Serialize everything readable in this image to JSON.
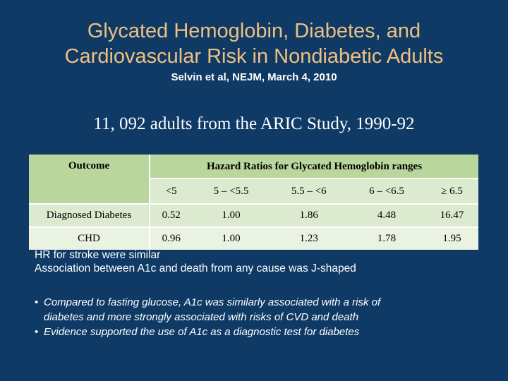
{
  "title": {
    "line1": "Glycated Hemoglobin, Diabetes, and",
    "line2": "Cardiovascular Risk in Nondiabetic Adults"
  },
  "citation": "Selvin et al, NEJM, March 4, 2010",
  "study": "11, 092 adults from the ARIC Study, 1990-92",
  "table": {
    "outcome_header": "Outcome",
    "group_header": "Hazard Ratios for Glycated Hemoglobin ranges",
    "ranges": [
      "<5",
      "5 – <5.5",
      "5.5 – <6",
      "6 – <6.5",
      "≥ 6.5"
    ],
    "rows": [
      {
        "outcome": "Diagnosed Diabetes",
        "values": [
          "0.52",
          "1.00",
          "1.86",
          "4.48",
          "16.47"
        ]
      },
      {
        "outcome": "CHD",
        "values": [
          "0.96",
          "1.00",
          "1.23",
          "1.78",
          "1.95"
        ]
      }
    ]
  },
  "notes": [
    "HR for stroke were similar",
    "Association between A1c and death from any cause was J-shaped"
  ],
  "bullets": [
    {
      "marker": "•",
      "line1": "Compared to fasting glucose, A1c was similarly associated with a risk of",
      "line2": "diabetes and more strongly associated with risks of CVD and death"
    },
    {
      "marker": "•",
      "line1": "Evidence supported the use of A1c as a diagnostic test for diabetes",
      "line2": ""
    }
  ],
  "colors": {
    "background": "#0f3a66",
    "title": "#f0c080",
    "table_header": "#b9d79c",
    "table_band": "#dcebcf",
    "table_light": "#eaf3e2"
  }
}
